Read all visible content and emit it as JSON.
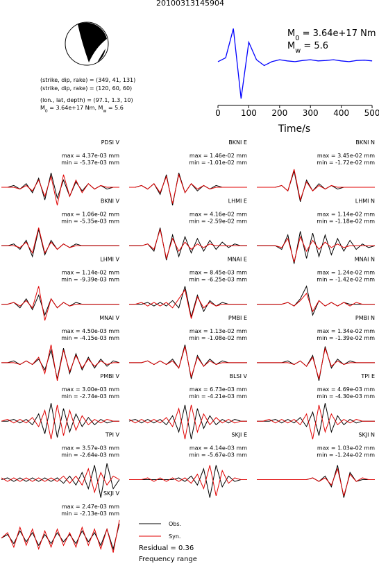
{
  "title": "20100313145904",
  "source_parameters": [
    "(strike, dip, rake) = (349, 41, 131)",
    "(strike, dip, rake) = (120, 60, 60)",
    "(lon., lat, depth) = (97.1, 1.3, 10)"
  ],
  "moment_line": [
    {
      "t": "M"
    },
    {
      "sub": "0"
    },
    {
      "t": " = 3.64e+17 Nm, M"
    },
    {
      "sub": "w"
    },
    {
      "t": " = 5.6"
    }
  ],
  "chart_data": [
    {
      "type": "line",
      "color": "#0000ff",
      "annotation": [
        [
          {
            "t": "M"
          },
          {
            "sub": "0"
          },
          {
            "t": " = 3.64e+17 Nm"
          }
        ],
        [
          {
            "t": "M"
          },
          {
            "sub": "w"
          },
          {
            "t": " = 5.6"
          }
        ]
      ],
      "x_label": "Time/s",
      "x": [
        0,
        25,
        50,
        75,
        100,
        125,
        150,
        175,
        200,
        225,
        250,
        275,
        300,
        325,
        350,
        375,
        400,
        425,
        450,
        475,
        500
      ],
      "values": [
        0,
        0.1,
        0.85,
        -0.95,
        0.5,
        0.05,
        -0.1,
        0,
        0.05,
        0.02,
        0,
        0.03,
        0.05,
        0.02,
        0.03,
        0.05,
        0.02,
        0,
        0.03,
        0.04,
        0.02
      ],
      "xlim": [
        0,
        510
      ],
      "ylim": [
        -1,
        1.05
      ],
      "xticks": [
        0,
        100,
        200,
        300,
        400,
        500
      ]
    },
    {
      "type": "waveforms",
      "legend": [
        {
          "name": "Obs.",
          "color": "#000000"
        },
        {
          "name": "Syn.",
          "color": "#e00000"
        }
      ],
      "residual": "Residual = 0.36",
      "frequency_range": "Frequency range",
      "panels": [
        {
          "station": "PDSI V",
          "max": "max = 4.37e-03 mm",
          "min": "min = -5.37e-03 mm",
          "obs": [
            0,
            0,
            1,
            -1,
            2,
            -3,
            5,
            -7,
            8,
            -6,
            4,
            -5,
            3,
            -2,
            2,
            -1,
            1,
            -1,
            0,
            0
          ],
          "syn": [
            0,
            0,
            0,
            -1,
            1,
            -2,
            4,
            -5,
            6,
            -10,
            7,
            -5,
            4,
            -3,
            2,
            -1,
            1,
            0,
            0,
            0
          ]
        },
        {
          "station": "BKNI E",
          "max": "max = 1.46e-02 mm",
          "min": "min = -1.01e-02 mm",
          "obs": [
            0,
            0,
            1,
            -1,
            2,
            -4,
            7,
            -10,
            8,
            -3,
            2,
            -2,
            1,
            -1,
            1,
            0,
            0,
            0,
            0,
            0
          ],
          "syn": [
            0,
            0,
            1,
            -1,
            2,
            -3,
            6,
            -9,
            7,
            -3,
            2,
            -1,
            1,
            -1,
            0,
            0,
            0,
            0,
            0,
            0
          ]
        },
        {
          "station": "BKNI N",
          "max": "max = 3.45e-02 mm",
          "min": "min = -1.72e-02 mm",
          "obs": [
            0,
            0,
            0,
            0,
            1,
            -2,
            9,
            -8,
            4,
            -2,
            2,
            -1,
            1,
            -1,
            0,
            0,
            0,
            0,
            0,
            0
          ],
          "syn": [
            0,
            0,
            0,
            0,
            1,
            -2,
            10,
            -7,
            3,
            -2,
            1,
            -1,
            1,
            0,
            0,
            0,
            0,
            0,
            0,
            0
          ]
        },
        {
          "station": "BKNI V",
          "max": "max = 1.06e-02 mm",
          "min": "min = -5.35e-03 mm",
          "obs": [
            0,
            0,
            1,
            -2,
            3,
            -6,
            9,
            -5,
            3,
            -2,
            1,
            -1,
            1,
            0,
            0,
            0,
            0,
            0,
            0,
            0
          ],
          "syn": [
            0,
            0,
            0,
            -1,
            2,
            -4,
            10,
            -4,
            2,
            -2,
            1,
            -1,
            0,
            0,
            0,
            0,
            0,
            0,
            0,
            0
          ]
        },
        {
          "station": "LHMI E",
          "max": "max = 4.16e-02 mm",
          "min": "min = -2.59e-02 mm",
          "obs": [
            0,
            0,
            0,
            1,
            -3,
            10,
            -8,
            6,
            -6,
            5,
            -4,
            4,
            -3,
            3,
            -2,
            2,
            -1,
            1,
            0,
            0
          ],
          "syn": [
            0,
            0,
            0,
            1,
            -2,
            9,
            -7,
            4,
            -3,
            2,
            -2,
            1,
            -1,
            1,
            0,
            0,
            0,
            0,
            0,
            0
          ]
        },
        {
          "station": "LHMI N",
          "max": "max = 1.14e-02 mm",
          "min": "min = -1.18e-02 mm",
          "obs": [
            0,
            0,
            0,
            0,
            -2,
            6,
            -10,
            8,
            -7,
            7,
            -6,
            6,
            -5,
            4,
            -3,
            3,
            -2,
            1,
            -1,
            0
          ],
          "syn": [
            0,
            0,
            0,
            0,
            -1,
            4,
            -9,
            5,
            -3,
            3,
            -2,
            2,
            -1,
            1,
            -1,
            0,
            0,
            0,
            0,
            0
          ]
        },
        {
          "station": "LHMI V",
          "max": "max = 1.14e-02 mm",
          "min": "min = -9.39e-03 mm",
          "obs": [
            0,
            0,
            1,
            -2,
            3,
            -3,
            5,
            -6,
            3,
            -2,
            1,
            -1,
            1,
            0,
            0,
            0,
            0,
            0,
            0,
            0
          ],
          "syn": [
            0,
            0,
            1,
            -1,
            2,
            -2,
            10,
            -9,
            3,
            -2,
            1,
            -1,
            0,
            0,
            0,
            0,
            0,
            0,
            0,
            0
          ]
        },
        {
          "station": "MNAI E",
          "max": "max = 8.45e-03 mm",
          "min": "min = -6.25e-03 mm",
          "obs": [
            0,
            0,
            0,
            1,
            -1,
            1,
            -1,
            2,
            -2,
            10,
            -7,
            5,
            -4,
            2,
            -1,
            1,
            0,
            0,
            0,
            0
          ],
          "syn": [
            0,
            0,
            1,
            -1,
            1,
            -1,
            1,
            -2,
            3,
            8,
            -8,
            4,
            -2,
            1,
            -1,
            0,
            0,
            0,
            0,
            0
          ]
        },
        {
          "station": "MNAI N",
          "max": "max = 1.24e-02 mm",
          "min": "min = -1.42e-02 mm",
          "obs": [
            0,
            0,
            0,
            0,
            0,
            1,
            -1,
            3,
            10,
            -6,
            2,
            -1,
            1,
            -1,
            1,
            0,
            0,
            0,
            0,
            0
          ],
          "syn": [
            0,
            0,
            0,
            0,
            0,
            1,
            -1,
            2,
            6,
            -4,
            2,
            -1,
            1,
            -1,
            1,
            -1,
            1,
            0,
            0,
            0
          ]
        },
        {
          "station": "MNAI V",
          "max": "max = 4.50e-03 mm",
          "min": "min = -4.15e-03 mm",
          "obs": [
            0,
            0,
            1,
            -1,
            1,
            -1,
            2,
            -4,
            7,
            -9,
            8,
            -6,
            5,
            -4,
            3,
            -3,
            2,
            -2,
            1,
            0
          ],
          "syn": [
            0,
            0,
            0,
            -1,
            1,
            -1,
            3,
            -6,
            10,
            -10,
            7,
            -5,
            4,
            -3,
            2,
            -2,
            1,
            -1,
            0,
            0
          ]
        },
        {
          "station": "PMBI E",
          "max": "max = 1.13e-02 mm",
          "min": "min = -1.08e-02 mm",
          "obs": [
            0,
            0,
            0,
            1,
            -1,
            1,
            -1,
            2,
            -3,
            10,
            -9,
            4,
            -2,
            2,
            -1,
            1,
            0,
            0,
            0,
            0
          ],
          "syn": [
            0,
            0,
            0,
            1,
            -1,
            1,
            -1,
            1,
            -3,
            9,
            -8,
            3,
            -2,
            1,
            -1,
            0,
            0,
            0,
            0,
            0
          ]
        },
        {
          "station": "PMBI N",
          "max": "max = 1.34e-02 mm",
          "min": "min = -1.39e-02 mm",
          "obs": [
            0,
            0,
            0,
            0,
            0,
            1,
            -1,
            1,
            -2,
            4,
            -10,
            9,
            -3,
            2,
            -1,
            1,
            0,
            0,
            0,
            0
          ],
          "syn": [
            0,
            0,
            0,
            0,
            0,
            0,
            -1,
            1,
            -2,
            3,
            -9,
            8,
            -2,
            1,
            -1,
            0,
            0,
            0,
            0,
            0
          ]
        },
        {
          "station": "PMBI V",
          "max": "max = 3.00e-03 mm",
          "min": "min = -2.74e-03 mm",
          "obs": [
            0,
            0,
            1,
            -1,
            1,
            -2,
            4,
            -7,
            10,
            -9,
            7,
            -6,
            4,
            -3,
            2,
            -2,
            1,
            -1,
            0,
            0
          ],
          "syn": [
            0,
            1,
            -1,
            1,
            -1,
            2,
            -3,
            6,
            -10,
            9,
            -8,
            6,
            -5,
            3,
            -2,
            1,
            -1,
            1,
            0,
            0
          ]
        },
        {
          "station": "BLSI V",
          "max": "max = 6.73e-03 mm",
          "min": "min = -4.21e-03 mm",
          "obs": [
            0,
            1,
            -1,
            1,
            -1,
            1,
            -2,
            3,
            -6,
            9,
            -10,
            7,
            -4,
            3,
            -2,
            1,
            -1,
            1,
            0,
            0
          ],
          "syn": [
            1,
            -1,
            1,
            -1,
            1,
            -1,
            2,
            -3,
            7,
            -10,
            9,
            -6,
            4,
            -2,
            2,
            -1,
            1,
            -1,
            0,
            0
          ]
        },
        {
          "station": "TPI E",
          "max": "max = 4.69e-03 mm",
          "min": "min = -4.30e-03 mm",
          "obs": [
            0,
            0,
            0,
            1,
            -1,
            1,
            -1,
            2,
            -3,
            5,
            -8,
            10,
            -6,
            3,
            -2,
            1,
            -1,
            0,
            0,
            0
          ],
          "syn": [
            0,
            0,
            1,
            -1,
            1,
            -1,
            1,
            -2,
            4,
            -10,
            9,
            -6,
            4,
            -2,
            1,
            -1,
            1,
            0,
            0,
            0
          ]
        },
        {
          "station": "TPI V",
          "max": "max = 3.57e-03 mm",
          "min": "min = -2.64e-03 mm",
          "obs": [
            0,
            1,
            -1,
            1,
            -1,
            1,
            -1,
            1,
            -1,
            1,
            -2,
            2,
            -3,
            4,
            -5,
            8,
            -10,
            9,
            -5,
            0
          ],
          "syn": [
            1,
            -1,
            1,
            -1,
            1,
            -1,
            1,
            -1,
            1,
            -1,
            2,
            -2,
            2,
            -3,
            6,
            -7,
            4,
            -3,
            2,
            0
          ]
        },
        {
          "station": "SKJI E",
          "max": "max = 4.14e-03 mm",
          "min": "min = -5.67e-03 mm",
          "obs": [
            0,
            0,
            0,
            0,
            0,
            0,
            0,
            0,
            1,
            -1,
            2,
            -3,
            6,
            -10,
            8,
            -4,
            2,
            -1,
            0,
            0
          ],
          "syn": [
            0,
            0,
            0,
            1,
            -1,
            1,
            -1,
            1,
            -1,
            1,
            -2,
            3,
            -5,
            8,
            -9,
            5,
            -2,
            1,
            0,
            0
          ]
        },
        {
          "station": "SKJI N",
          "max": "max = 1.03e-02 mm",
          "min": "min = -1.24e-02 mm",
          "obs": [
            0,
            0,
            0,
            0,
            0,
            0,
            0,
            0,
            0,
            1,
            -1,
            2,
            -4,
            8,
            -10,
            4,
            -1,
            0,
            0,
            0
          ],
          "syn": [
            0,
            0,
            0,
            0,
            0,
            0,
            0,
            0,
            0,
            1,
            -1,
            1,
            -3,
            6,
            -9,
            3,
            -1,
            1,
            0,
            0
          ]
        },
        {
          "station": "SKJI V",
          "max": "max = 2.47e-03 mm",
          "min": "min = -2.13e-03 mm",
          "obs": [
            0,
            2,
            -3,
            4,
            -2,
            3,
            -4,
            2,
            -3,
            3,
            -2,
            2,
            -3,
            4,
            -2,
            3,
            -4,
            5,
            -6,
            8
          ],
          "syn": [
            0,
            3,
            -5,
            6,
            -4,
            5,
            -6,
            4,
            -5,
            5,
            -4,
            3,
            -5,
            6,
            -4,
            5,
            -6,
            5,
            -8,
            10
          ]
        }
      ]
    }
  ]
}
